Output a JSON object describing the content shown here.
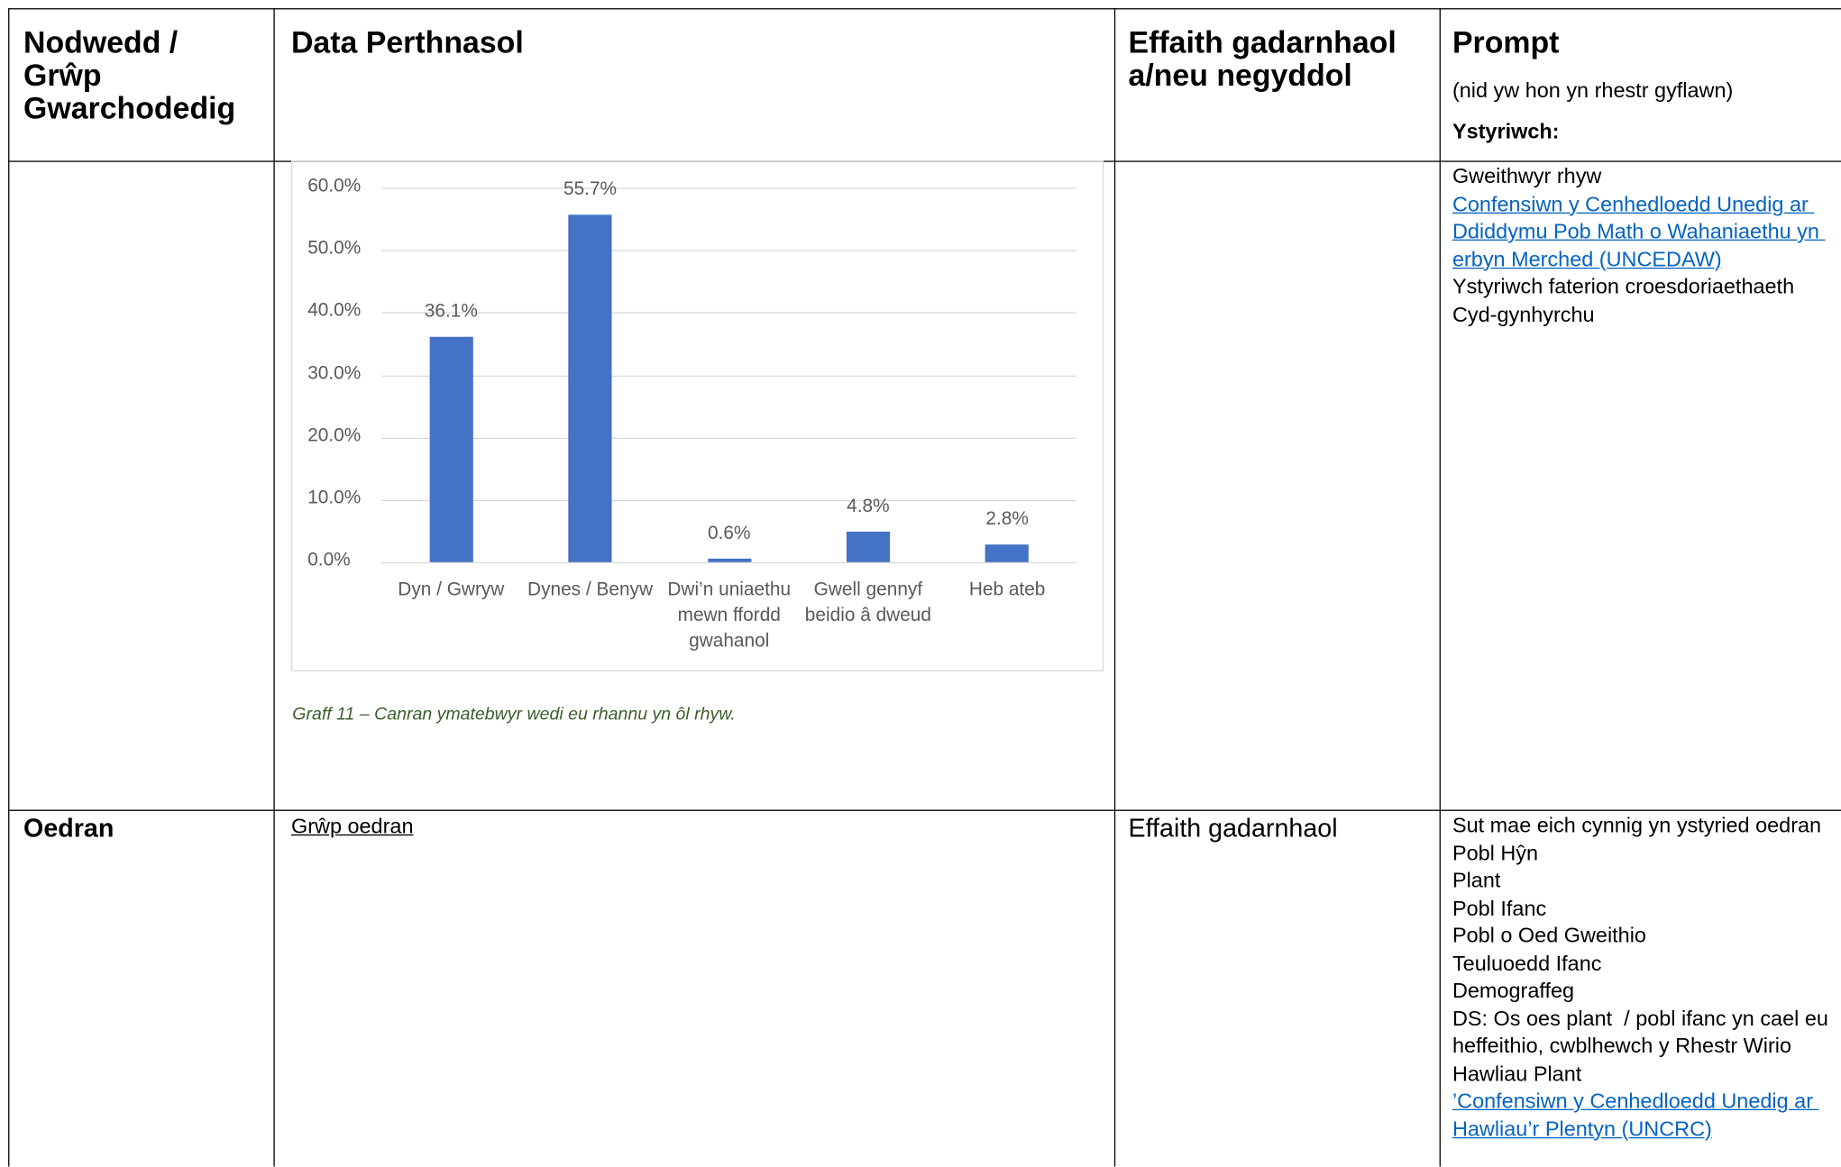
{
  "table": {
    "header": [
      "Nodwedd / Grŵp Gwarchodedig",
      "Data Perthnasol",
      "Effaith gadarnhaol a/neu negyddol"
    ],
    "prompt_header": {
      "title": "Prompt",
      "note": "(nid yw hon yn rhestr gyflawn)",
      "lead": "Ystyriwch:"
    },
    "rows": [
      {
        "chart": {
          "type": "bar",
          "categories": [
            "Dyn / Gwryw",
            "Dynes / Benyw",
            "Dwi’n uniaethu mewn ffordd gwahanol",
            "Gwell gennyf beidio â dweud",
            "Heb ateb"
          ],
          "values": [
            36.1,
            55.7,
            0.6,
            4.8,
            2.8
          ],
          "value_labels": [
            "36.1%",
            "55.7%",
            "0.6%",
            "4.8%",
            "2.8%"
          ],
          "color": "#4472c4",
          "ylim": [
            0,
            60
          ],
          "yticks": [
            {
              "value": 0,
              "label": "0.0%"
            },
            {
              "value": 10,
              "label": "10.0%"
            },
            {
              "value": 20,
              "label": "20.0%"
            },
            {
              "value": 30,
              "label": "30.0%"
            },
            {
              "value": 40,
              "label": "40.0%"
            },
            {
              "value": 50,
              "label": "50.0%"
            },
            {
              "value": 60,
              "label": "60.0%"
            }
          ],
          "grid": true
        },
        "caption": "Graff 11 – Canran ymatebwyr wedi eu rhannu yn ôl rhyw.",
        "prompts": [
          {
            "text": "Gweithwyr rhyw"
          },
          {
            "text": "Confensiwn y Cenhedloedd Unedig ar Ddiddymu Pob Math o Wahaniaethu yn erbyn Merched (UNCEDAW)",
            "link": true
          },
          {
            "text": "Ystyriwch faterion croesdoriaethaeth"
          },
          {
            "text": "Cyd-gynhyrchu"
          }
        ]
      },
      {
        "characteristic": "Oedran",
        "data": "Grŵp oedran",
        "impact": "Effaith gadarnhaol",
        "prompts": [
          {
            "text": "Sut mae eich cynnig yn ystyried oedran"
          },
          {
            "text": "Pobl Hŷn"
          },
          {
            "text": "Plant"
          },
          {
            "text": "Pobl Ifanc"
          },
          {
            "text": "Pobl o Oed Gweithio"
          },
          {
            "text": "Teuluoedd Ifanc"
          },
          {
            "text": "Demograffeg"
          },
          {
            "text": "DS: Os oes plant  / pobl ifanc yn cael eu heffeithio, cwblhewch y Rhestr Wirio Hawliau Plant"
          },
          {
            "text": "’Confensiwn y Cenhedloedd Unedig ar Hawliau’r Plentyn (UNCRC)",
            "link": true
          }
        ]
      }
    ]
  }
}
